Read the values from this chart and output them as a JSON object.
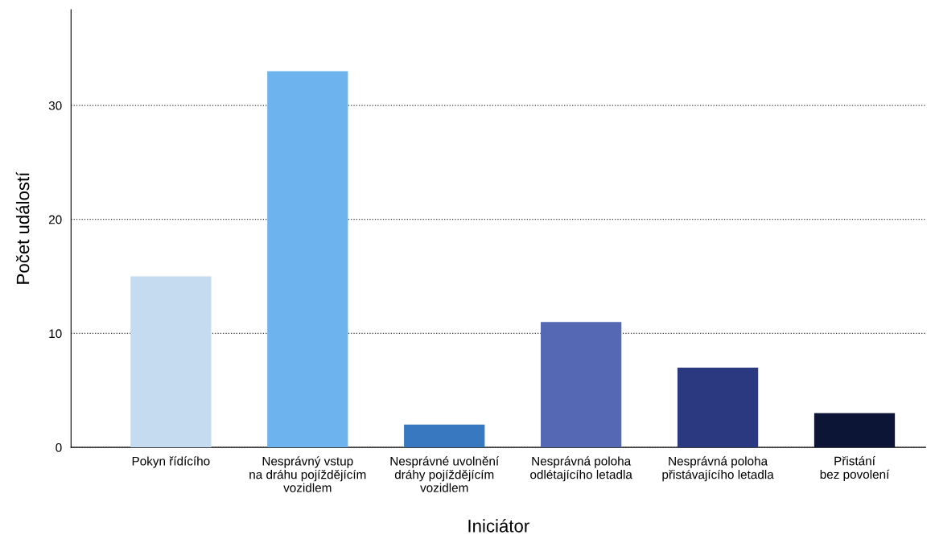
{
  "chart_data": {
    "type": "bar",
    "xlabel": "Iniciátor",
    "ylabel": "Počet událostí",
    "categories": [
      "Pokyn řídícího",
      "Nesprávný vstup\nna dráhu pojíždějícím\nvozidlem",
      "Nesprávné uvolnění\ndráhy pojíždějícím\nvozidlem",
      "Nesprávná poloha\nodlétajícího letadla",
      "Nesprávná poloha\npřistávajícího letadla",
      "Přistání\nbez povolení"
    ],
    "values": [
      15,
      33,
      2,
      11,
      7,
      3
    ],
    "colors": [
      "#c5dbf0",
      "#6db3ee",
      "#3878c0",
      "#5468b4",
      "#2b3a80",
      "#0c1535"
    ],
    "ylim": [
      0,
      38.4
    ],
    "yticks": [
      0,
      10,
      20,
      30
    ],
    "grid": "y",
    "line_style": "dotted",
    "legend": false
  }
}
